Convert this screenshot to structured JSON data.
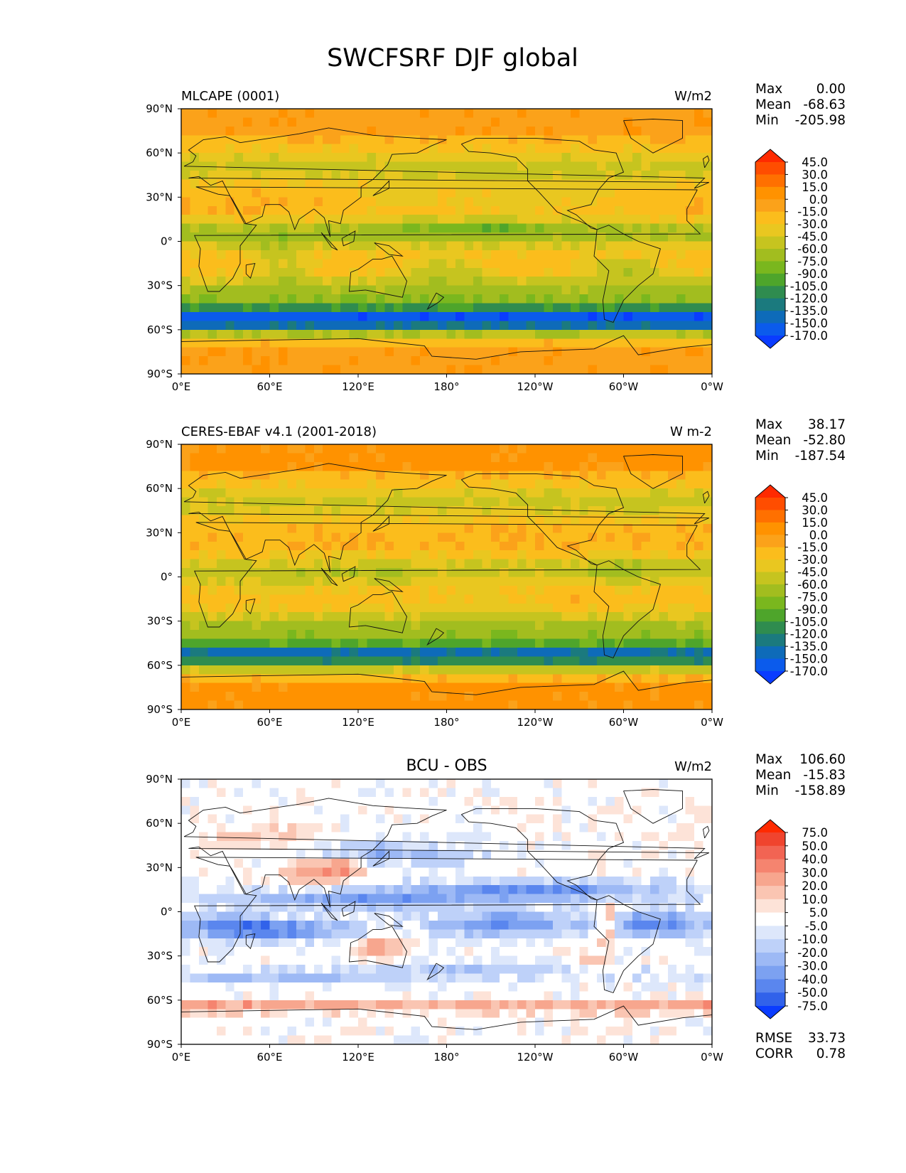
{
  "figure_title": "SWCFSRF DJF global",
  "chart_data": [
    {
      "type": "heatmap",
      "title_left": "MLCAPE (0001)",
      "title_center": "",
      "units": "W/m2",
      "x_ticks": [
        "0°E",
        "60°E",
        "120°E",
        "180°",
        "120°W",
        "60°W",
        "0°W"
      ],
      "y_ticks": [
        "90°N",
        "60°N",
        "30°N",
        "0°",
        "30°S",
        "60°S",
        "90°S"
      ],
      "xlim": [
        0,
        360
      ],
      "ylim": [
        -90,
        90
      ],
      "stats": [
        {
          "label": "Max",
          "value": "0.00"
        },
        {
          "label": "Mean",
          "value": "-68.63"
        },
        {
          "label": "Min",
          "value": "-205.98"
        }
      ],
      "colorbar_levels": [
        "45.0",
        "30.0",
        "15.0",
        "0.0",
        "-15.0",
        "-30.0",
        "-45.0",
        "-60.0",
        "-75.0",
        "-90.0",
        "-105.0",
        "-120.0",
        "-135.0",
        "-150.0",
        "-170.0"
      ],
      "colorbar_colors": [
        "#ff2a00",
        "#ff4d00",
        "#ff7000",
        "#ff9200",
        "#fba21a",
        "#fbbd1c",
        "#e9c720",
        "#c6c41f",
        "#a2bd1f",
        "#7ab71e",
        "#4ea52b",
        "#2f8c4f",
        "#1b7a7e",
        "#0e6bb9",
        "#0b5bec",
        "#0a3cff"
      ]
    },
    {
      "type": "heatmap",
      "title_left": "CERES-EBAF v4.1 (2001-2018)",
      "title_center": "",
      "units": "W m-2",
      "x_ticks": [
        "0°E",
        "60°E",
        "120°E",
        "180°",
        "120°W",
        "60°W",
        "0°W"
      ],
      "y_ticks": [
        "90°N",
        "60°N",
        "30°N",
        "0°",
        "30°S",
        "60°S",
        "90°S"
      ],
      "xlim": [
        0,
        360
      ],
      "ylim": [
        -90,
        90
      ],
      "stats": [
        {
          "label": "Max",
          "value": "38.17"
        },
        {
          "label": "Mean",
          "value": "-52.80"
        },
        {
          "label": "Min",
          "value": "-187.54"
        }
      ],
      "colorbar_levels": [
        "45.0",
        "30.0",
        "15.0",
        "0.0",
        "-15.0",
        "-30.0",
        "-45.0",
        "-60.0",
        "-75.0",
        "-90.0",
        "-105.0",
        "-120.0",
        "-135.0",
        "-150.0",
        "-170.0"
      ],
      "colorbar_colors": [
        "#ff2a00",
        "#ff4d00",
        "#ff7000",
        "#ff9200",
        "#fba21a",
        "#fbbd1c",
        "#e9c720",
        "#c6c41f",
        "#a2bd1f",
        "#7ab71e",
        "#4ea52b",
        "#2f8c4f",
        "#1b7a7e",
        "#0e6bb9",
        "#0b5bec",
        "#0a3cff"
      ]
    },
    {
      "type": "heatmap",
      "title_left": "",
      "title_center": "BCU - OBS",
      "units": "W/m2",
      "x_ticks": [
        "0°E",
        "60°E",
        "120°E",
        "180°",
        "120°W",
        "60°W",
        "0°W"
      ],
      "y_ticks": [
        "90°N",
        "60°N",
        "30°N",
        "0°",
        "30°S",
        "60°S",
        "90°S"
      ],
      "xlim": [
        0,
        360
      ],
      "ylim": [
        -90,
        90
      ],
      "stats": [
        {
          "label": "Max",
          "value": "106.60"
        },
        {
          "label": "Mean",
          "value": "-15.83"
        },
        {
          "label": "Min",
          "value": "-158.89"
        }
      ],
      "extra_stats": [
        {
          "label": "RMSE",
          "value": "33.73"
        },
        {
          "label": "CORR",
          "value": "0.78"
        }
      ],
      "colorbar_levels": [
        "75.0",
        "50.0",
        "40.0",
        "30.0",
        "20.0",
        "10.0",
        "5.0",
        "-5.0",
        "-10.0",
        "-20.0",
        "-30.0",
        "-40.0",
        "-50.0",
        "-75.0"
      ],
      "colorbar_colors": [
        "#ff2a00",
        "#f0442e",
        "#f26453",
        "#f5846f",
        "#f7a68e",
        "#fac5b2",
        "#fde3d8",
        "#ffffff",
        "#dde7fb",
        "#bed1f9",
        "#9db9f5",
        "#7ca1f1",
        "#5a86ee",
        "#3162ea",
        "#0a3cff"
      ]
    }
  ]
}
